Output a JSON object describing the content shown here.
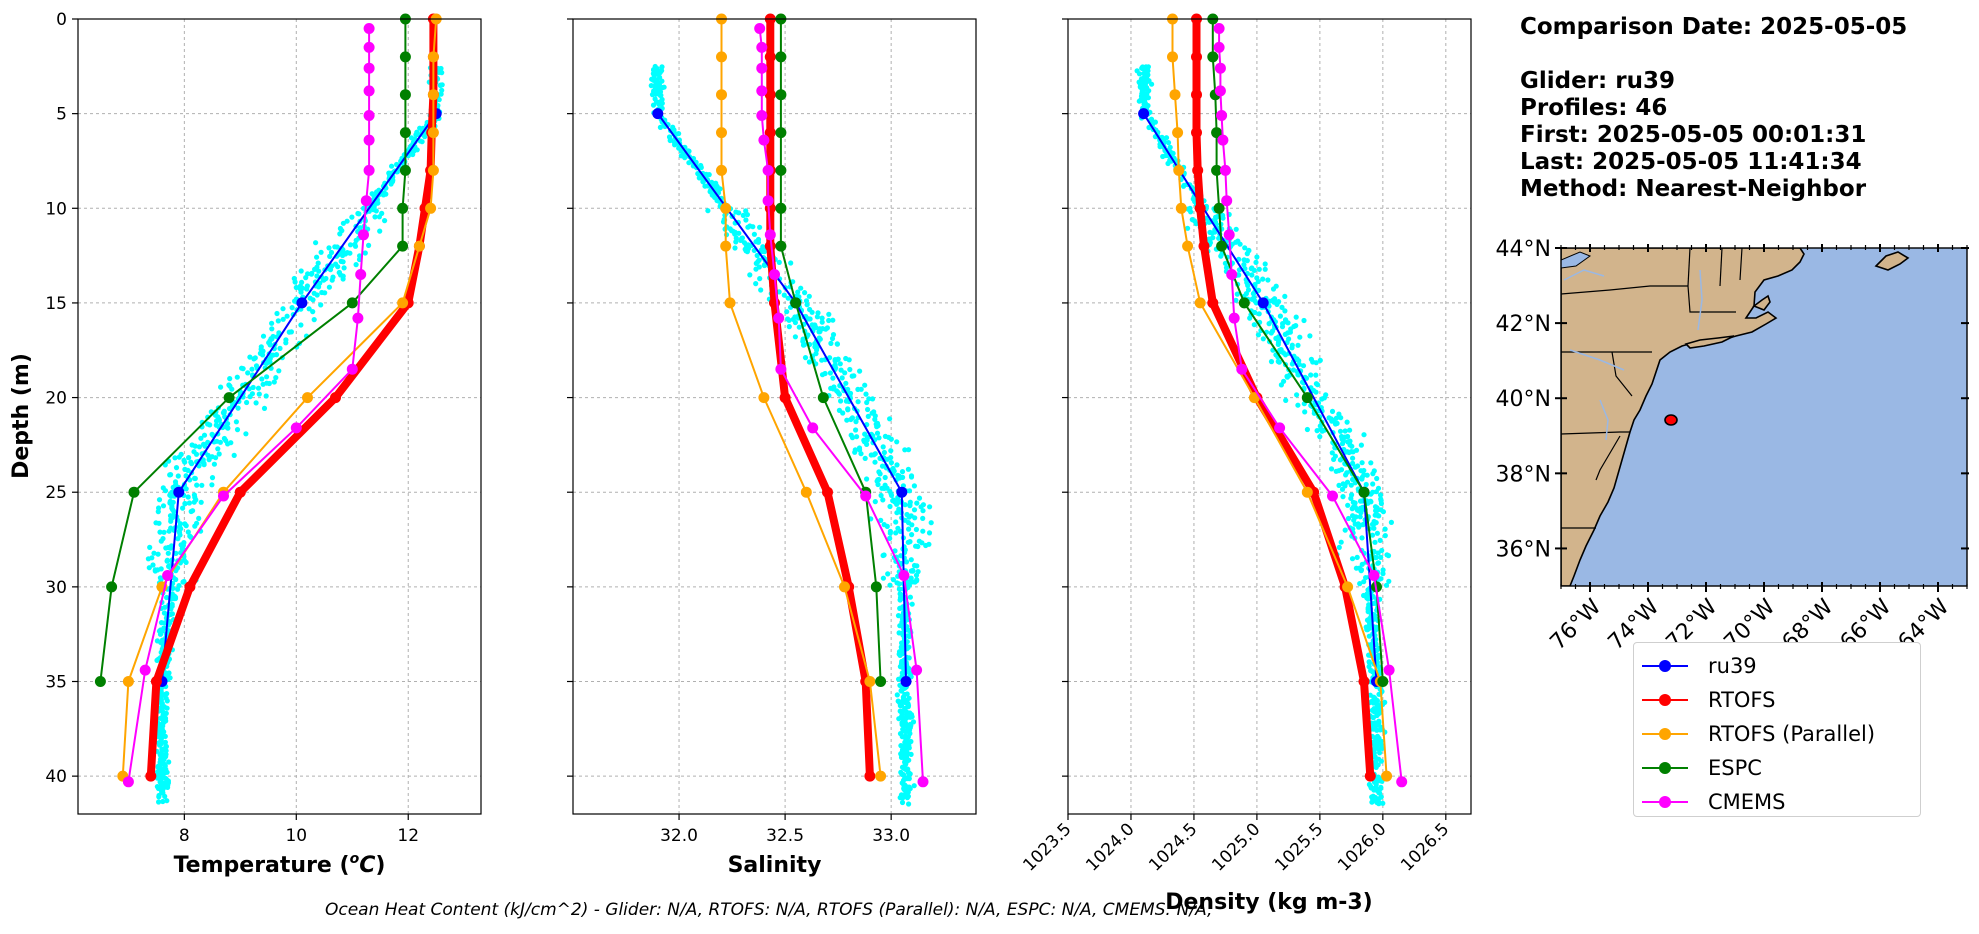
{
  "info": {
    "comparison_date": "Comparison Date: 2025-05-05",
    "glider": "Glider: ru39",
    "profiles": "Profiles: 46",
    "first": "First: 2025-05-05 00:01:31",
    "last": "Last: 2025-05-05 11:41:34",
    "method": "Method: Nearest-Neighbor"
  },
  "footer": "Ocean Heat Content (kJ/cm^2) - Glider: N/A,  RTOFS: N/A,  RTOFS (Parallel): N/A,  ESPC: N/A,  CMEMS: N/A,",
  "colors": {
    "glider_scatter": "#00ffff",
    "ru39": "#0000ff",
    "RTOFS": "#ff0000",
    "RTOFS (Parallel)": "#ffa500",
    "ESPC": "#008000",
    "CMEMS": "#ff00ff",
    "land": "#d2b48c",
    "ocean": "#9ab8e4"
  },
  "legend": [
    {
      "name": "ru39",
      "color": "#0000ff"
    },
    {
      "name": "RTOFS",
      "color": "#ff0000"
    },
    {
      "name": "RTOFS (Parallel)",
      "color": "#ffa500"
    },
    {
      "name": "ESPC",
      "color": "#008000"
    },
    {
      "name": "CMEMS",
      "color": "#ff00ff"
    }
  ],
  "chart_data": [
    {
      "type": "line",
      "title": "",
      "xlabel": "Temperature (°C)",
      "ylabel": "Depth (m)",
      "xlim": [
        6.1,
        13.3
      ],
      "ylim": [
        42,
        0
      ],
      "xticks": [
        8,
        10,
        12
      ],
      "yticks": [
        0,
        5,
        10,
        15,
        20,
        25,
        30,
        35,
        40
      ],
      "grid": true,
      "series": [
        {
          "name": "ru39",
          "depth": [
            5,
            15,
            25,
            35
          ],
          "values": [
            12.5,
            10.1,
            7.9,
            7.6
          ]
        },
        {
          "name": "RTOFS",
          "depth": [
            0,
            2,
            4,
            6,
            8,
            10,
            12,
            15,
            20,
            25,
            30,
            35,
            40
          ],
          "values": [
            12.45,
            12.45,
            12.45,
            12.42,
            12.4,
            12.3,
            12.2,
            12.0,
            10.7,
            9.0,
            8.1,
            7.5,
            7.4
          ]
        },
        {
          "name": "RTOFS (Parallel)",
          "depth": [
            0,
            2,
            4,
            6,
            8,
            10,
            12,
            15,
            20,
            25,
            30,
            35,
            40
          ],
          "values": [
            12.5,
            12.45,
            12.45,
            12.45,
            12.45,
            12.4,
            12.2,
            11.9,
            10.2,
            8.7,
            7.6,
            7.0,
            6.9
          ]
        },
        {
          "name": "ESPC",
          "depth": [
            0,
            2,
            4,
            6,
            8,
            10,
            12,
            15,
            20,
            25,
            30,
            35
          ],
          "values": [
            11.95,
            11.95,
            11.95,
            11.95,
            11.95,
            11.9,
            11.9,
            11.0,
            8.8,
            7.1,
            6.7,
            6.5
          ]
        },
        {
          "name": "CMEMS",
          "depth": [
            0.5,
            1.5,
            2.6,
            3.8,
            5.1,
            6.4,
            8.0,
            9.6,
            11.4,
            13.5,
            15.8,
            18.5,
            21.6,
            25.2,
            29.4,
            34.4,
            40.3
          ],
          "values": [
            11.3,
            11.3,
            11.3,
            11.3,
            11.3,
            11.3,
            11.3,
            11.25,
            11.2,
            11.15,
            11.1,
            11.0,
            10.0,
            8.7,
            7.7,
            7.3,
            7.0
          ]
        }
      ],
      "scatter": {
        "name": "glider",
        "note": "ru39 glider observations"
      }
    },
    {
      "type": "line",
      "title": "",
      "xlabel": "Salinity",
      "ylabel": "",
      "xlim": [
        31.5,
        33.4
      ],
      "ylim": [
        42,
        0
      ],
      "xticks": [
        32.0,
        32.5,
        33.0
      ],
      "grid": true,
      "series": [
        {
          "name": "ru39",
          "depth": [
            5,
            15,
            25,
            35
          ],
          "values": [
            31.9,
            32.55,
            33.05,
            33.07
          ]
        },
        {
          "name": "RTOFS",
          "depth": [
            0,
            2,
            4,
            6,
            8,
            10,
            12,
            15,
            20,
            25,
            30,
            35,
            40
          ],
          "values": [
            32.43,
            32.43,
            32.43,
            32.43,
            32.43,
            32.43,
            32.43,
            32.45,
            32.5,
            32.7,
            32.8,
            32.88,
            32.9
          ]
        },
        {
          "name": "RTOFS (Parallel)",
          "depth": [
            0,
            2,
            4,
            6,
            8,
            10,
            12,
            15,
            20,
            25,
            30,
            35,
            40
          ],
          "values": [
            32.2,
            32.2,
            32.2,
            32.2,
            32.2,
            32.22,
            32.22,
            32.24,
            32.4,
            32.6,
            32.78,
            32.9,
            32.95
          ]
        },
        {
          "name": "ESPC",
          "depth": [
            0,
            2,
            4,
            6,
            8,
            10,
            12,
            15,
            20,
            25,
            30,
            35
          ],
          "values": [
            32.48,
            32.48,
            32.48,
            32.48,
            32.48,
            32.48,
            32.48,
            32.55,
            32.68,
            32.88,
            32.93,
            32.95
          ]
        },
        {
          "name": "CMEMS",
          "depth": [
            0.5,
            1.5,
            2.6,
            3.8,
            5.1,
            6.4,
            8.0,
            9.6,
            11.4,
            13.5,
            15.8,
            18.5,
            21.6,
            25.2,
            29.4,
            34.4,
            40.3
          ],
          "values": [
            32.38,
            32.39,
            32.39,
            32.39,
            32.39,
            32.4,
            32.42,
            32.42,
            32.43,
            32.45,
            32.47,
            32.48,
            32.63,
            32.88,
            33.06,
            33.12,
            33.15
          ]
        }
      ],
      "scatter": {
        "name": "glider",
        "note": "ru39 glider observations"
      }
    },
    {
      "type": "line",
      "title": "",
      "xlabel": "Density (kg m-3)",
      "ylabel": "",
      "xlim": [
        1023.5,
        1026.7
      ],
      "ylim": [
        42,
        0
      ],
      "xticks": [
        1023.5,
        1024.0,
        1024.5,
        1025.0,
        1025.5,
        1026.0,
        1026.5
      ],
      "grid": true,
      "series": [
        {
          "name": "ru39",
          "depth": [
            5,
            15,
            25,
            35
          ],
          "values": [
            1024.1,
            1025.05,
            1025.85,
            1025.95
          ]
        },
        {
          "name": "RTOFS",
          "depth": [
            0,
            2,
            4,
            6,
            8,
            10,
            12,
            15,
            20,
            25,
            30,
            35,
            40
          ],
          "values": [
            1024.52,
            1024.52,
            1024.52,
            1024.52,
            1024.53,
            1024.55,
            1024.58,
            1024.65,
            1025.0,
            1025.45,
            1025.7,
            1025.85,
            1025.9
          ]
        },
        {
          "name": "RTOFS (Parallel)",
          "depth": [
            0,
            2,
            4,
            6,
            8,
            10,
            12,
            15,
            20,
            25,
            30,
            35,
            40
          ],
          "values": [
            1024.33,
            1024.33,
            1024.35,
            1024.37,
            1024.38,
            1024.4,
            1024.45,
            1024.55,
            1024.98,
            1025.4,
            1025.72,
            1025.98,
            1026.03
          ]
        },
        {
          "name": "ESPC",
          "depth": [
            0,
            2,
            4,
            6,
            8,
            10,
            12,
            15,
            20,
            25,
            30,
            35
          ],
          "values": [
            1024.65,
            1024.65,
            1024.67,
            1024.68,
            1024.68,
            1024.7,
            1024.72,
            1024.9,
            1025.4,
            1025.85,
            1025.95,
            1026.0
          ]
        },
        {
          "name": "CMEMS",
          "depth": [
            0.5,
            1.5,
            2.6,
            3.8,
            5.1,
            6.4,
            8.0,
            9.6,
            11.4,
            13.5,
            15.8,
            18.5,
            21.6,
            25.2,
            29.4,
            34.4,
            40.3
          ],
          "values": [
            1024.7,
            1024.7,
            1024.71,
            1024.71,
            1024.72,
            1024.73,
            1024.75,
            1024.76,
            1024.78,
            1024.8,
            1024.82,
            1024.88,
            1025.18,
            1025.6,
            1025.93,
            1026.05,
            1026.15
          ]
        }
      ],
      "scatter": {
        "name": "glider",
        "note": "ru39 glider observations"
      }
    },
    {
      "type": "map",
      "lon_range": [
        -77,
        -63
      ],
      "lat_range": [
        35,
        44
      ],
      "lon_ticks": [
        "76°W",
        "74°W",
        "72°W",
        "70°W",
        "68°W",
        "66°W",
        "64°W"
      ],
      "lat_ticks": [
        "44°N",
        "42°N",
        "40°N",
        "38°N",
        "36°N"
      ],
      "marker": {
        "lon": -73.7,
        "lat": 39.6,
        "label": "glider location"
      }
    }
  ]
}
